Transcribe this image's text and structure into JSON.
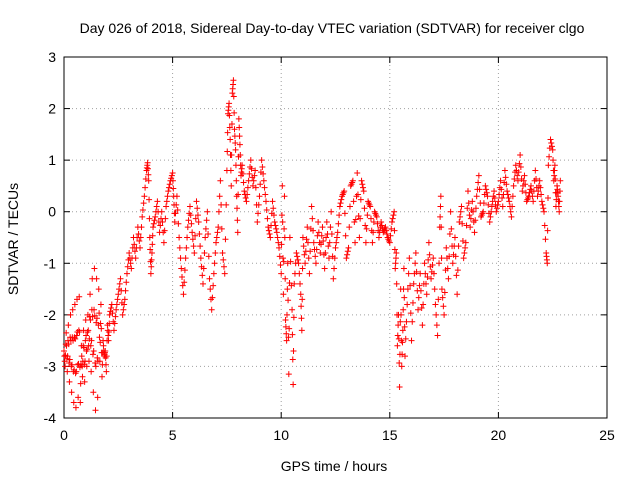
{
  "chart_data": {
    "type": "scatter",
    "title": "Day 026 of 2018, Sidereal Day-to-day VTEC variation (SDTVAR) for receiver clgo",
    "xlabel": "GPS time / hours",
    "ylabel": "SDTVAR / TECUs",
    "xlim": [
      0,
      25
    ],
    "ylim": [
      -4,
      3
    ],
    "xticks": [
      0,
      5,
      10,
      15,
      20,
      25
    ],
    "yticks": [
      -4,
      -3,
      -2,
      -1,
      0,
      1,
      2,
      3
    ],
    "grid": true,
    "marker": "+",
    "series": [
      {
        "name": "SDTVAR",
        "color": "#ff0000",
        "points": [
          [
            0.0,
            -2.7
          ],
          [
            0.05,
            -3.0
          ],
          [
            0.1,
            -2.35
          ],
          [
            0.15,
            -3.1
          ],
          [
            0.2,
            -2.2
          ],
          [
            0.25,
            -3.3
          ],
          [
            0.3,
            -2.0
          ],
          [
            0.35,
            -3.5
          ],
          [
            0.4,
            -1.9
          ],
          [
            0.45,
            -3.7
          ],
          [
            0.5,
            -1.8
          ],
          [
            0.55,
            -3.8
          ],
          [
            0.6,
            -1.7
          ],
          [
            0.65,
            -3.6
          ],
          [
            0.7,
            -1.65
          ],
          [
            0.75,
            -3.7
          ],
          [
            0.8,
            -2.6
          ],
          [
            0.85,
            -3.2
          ],
          [
            0.9,
            -2.3
          ],
          [
            0.95,
            -3.3
          ],
          [
            1.0,
            -2.1
          ],
          [
            1.05,
            -3.0
          ],
          [
            1.1,
            -2.0
          ],
          [
            1.15,
            -2.9
          ],
          [
            1.2,
            -1.6
          ],
          [
            1.25,
            -3.1
          ],
          [
            1.3,
            -1.3
          ],
          [
            1.35,
            -3.5
          ],
          [
            1.4,
            -1.1
          ],
          [
            1.45,
            -3.85
          ],
          [
            1.5,
            -1.3
          ],
          [
            1.55,
            -3.6
          ],
          [
            1.6,
            -1.5
          ],
          [
            1.65,
            -2.9
          ],
          [
            1.7,
            -1.8
          ],
          [
            1.75,
            -3.2
          ],
          [
            1.8,
            -2.5
          ],
          [
            1.85,
            -2.8
          ],
          [
            1.9,
            -2.7
          ],
          [
            1.95,
            -3.1
          ],
          [
            2.0,
            -2.2
          ],
          [
            2.05,
            -2.5
          ],
          [
            2.1,
            -2.0
          ],
          [
            2.2,
            -1.8
          ],
          [
            2.3,
            -2.3
          ],
          [
            2.4,
            -1.9
          ],
          [
            2.5,
            -1.6
          ],
          [
            2.6,
            -1.3
          ],
          [
            2.7,
            -2.0
          ],
          [
            2.8,
            -1.7
          ],
          [
            2.9,
            -1.2
          ],
          [
            3.0,
            -0.8
          ],
          [
            3.1,
            -1.1
          ],
          [
            3.2,
            -0.5
          ],
          [
            3.3,
            -0.9
          ],
          [
            3.4,
            -0.3
          ],
          [
            3.5,
            -0.7
          ],
          [
            3.6,
            -0.1
          ],
          [
            3.7,
            0.3
          ],
          [
            3.8,
            0.8
          ],
          [
            3.85,
            0.95
          ],
          [
            3.9,
            0.6
          ],
          [
            3.95,
            -0.5
          ],
          [
            4.0,
            -1.2
          ],
          [
            4.05,
            -0.8
          ],
          [
            4.1,
            -0.3
          ],
          [
            4.2,
            -0.1
          ],
          [
            4.3,
            0.2
          ],
          [
            4.4,
            -0.4
          ],
          [
            4.5,
            0.0
          ],
          [
            4.6,
            -0.6
          ],
          [
            4.7,
            0.1
          ],
          [
            4.8,
            0.4
          ],
          [
            4.9,
            0.6
          ],
          [
            5.0,
            0.75
          ],
          [
            5.05,
            0.3
          ],
          [
            5.1,
            -0.2
          ],
          [
            5.2,
            0.3
          ],
          [
            5.3,
            -0.5
          ],
          [
            5.4,
            -1.1
          ],
          [
            5.5,
            -1.6
          ],
          [
            5.6,
            -0.9
          ],
          [
            5.7,
            -0.3
          ],
          [
            5.8,
            0.1
          ],
          [
            5.9,
            -0.4
          ],
          [
            6.0,
            -0.8
          ],
          [
            6.1,
            0.2
          ],
          [
            6.2,
            -0.2
          ],
          [
            6.3,
            -0.9
          ],
          [
            6.4,
            -1.4
          ],
          [
            6.5,
            -0.5
          ],
          [
            6.6,
            0.0
          ],
          [
            6.7,
            -1.3
          ],
          [
            6.8,
            -1.9
          ],
          [
            6.9,
            -1.2
          ],
          [
            7.0,
            -0.6
          ],
          [
            7.1,
            -0.3
          ],
          [
            7.2,
            0.6
          ],
          [
            7.3,
            -0.8
          ],
          [
            7.4,
            -1.2
          ],
          [
            7.5,
            0.8
          ],
          [
            7.55,
            1.9
          ],
          [
            7.6,
            2.1
          ],
          [
            7.65,
            1.4
          ],
          [
            7.7,
            0.5
          ],
          [
            7.75,
            2.3
          ],
          [
            7.8,
            2.55
          ],
          [
            7.85,
            1.6
          ],
          [
            7.9,
            1.2
          ],
          [
            7.95,
            0.3
          ],
          [
            8.0,
            -0.4
          ],
          [
            8.05,
            1.8
          ],
          [
            8.1,
            1.3
          ],
          [
            8.15,
            0.7
          ],
          [
            8.2,
            0.9
          ],
          [
            8.3,
            0.4
          ],
          [
            8.4,
            0.2
          ],
          [
            8.5,
            0.6
          ],
          [
            8.6,
            1.0
          ],
          [
            8.7,
            0.5
          ],
          [
            8.8,
            0.8
          ],
          [
            8.9,
            -0.2
          ],
          [
            9.0,
            0.3
          ],
          [
            9.1,
            1.0
          ],
          [
            9.2,
            0.6
          ],
          [
            9.3,
            0.2
          ],
          [
            9.4,
            -0.3
          ],
          [
            9.5,
            -0.5
          ],
          [
            9.6,
            0.2
          ],
          [
            9.7,
            -0.2
          ],
          [
            9.8,
            -0.4
          ],
          [
            9.9,
            -0.7
          ],
          [
            10.0,
            -1.2
          ],
          [
            10.05,
            0.5
          ],
          [
            10.1,
            -1.6
          ],
          [
            10.15,
            0.3
          ],
          [
            10.2,
            -2.1
          ],
          [
            10.25,
            -2.5
          ],
          [
            10.3,
            -1.0
          ],
          [
            10.35,
            -3.15
          ],
          [
            10.4,
            -0.5
          ],
          [
            10.5,
            -1.9
          ],
          [
            10.55,
            -3.35
          ],
          [
            10.6,
            -1.4
          ],
          [
            10.7,
            -0.8
          ],
          [
            10.8,
            -1.0
          ],
          [
            10.9,
            -1.6
          ],
          [
            10.95,
            -2.3
          ],
          [
            11.0,
            -0.5
          ],
          [
            11.1,
            -1.0
          ],
          [
            11.2,
            -0.3
          ],
          [
            11.3,
            -1.2
          ],
          [
            11.4,
            0.1
          ],
          [
            11.5,
            -0.6
          ],
          [
            11.6,
            -1.0
          ],
          [
            11.7,
            -0.2
          ],
          [
            11.8,
            -0.8
          ],
          [
            11.9,
            -0.3
          ],
          [
            12.0,
            -1.1
          ],
          [
            12.1,
            -0.2
          ],
          [
            12.2,
            -0.9
          ],
          [
            12.3,
            0.0
          ],
          [
            12.4,
            -1.3
          ],
          [
            12.5,
            -0.7
          ],
          [
            12.6,
            -0.4
          ],
          [
            12.7,
            0.1
          ],
          [
            12.8,
            0.3
          ],
          [
            12.9,
            0.4
          ],
          [
            13.0,
            -0.9
          ],
          [
            13.1,
            -0.7
          ],
          [
            13.2,
            0.5
          ],
          [
            13.3,
            0.6
          ],
          [
            13.4,
            -0.6
          ],
          [
            13.5,
            0.75
          ],
          [
            13.6,
            -0.5
          ],
          [
            13.7,
            0.6
          ],
          [
            13.8,
            0.4
          ],
          [
            13.9,
            -0.6
          ],
          [
            14.0,
            0.2
          ],
          [
            14.1,
            0.1
          ],
          [
            14.2,
            -0.6
          ],
          [
            14.3,
            0.0
          ],
          [
            14.4,
            -0.1
          ],
          [
            14.5,
            -0.5
          ],
          [
            14.6,
            -0.2
          ],
          [
            14.7,
            -0.4
          ],
          [
            14.8,
            -0.3
          ],
          [
            14.9,
            -0.5
          ],
          [
            15.0,
            -0.6
          ],
          [
            15.1,
            -0.2
          ],
          [
            15.2,
            0.0
          ],
          [
            15.25,
            -1.1
          ],
          [
            15.3,
            -0.8
          ],
          [
            15.35,
            -2.6
          ],
          [
            15.4,
            -2.0
          ],
          [
            15.45,
            -3.4
          ],
          [
            15.5,
            -1.5
          ],
          [
            15.55,
            -3.0
          ],
          [
            15.6,
            -2.3
          ],
          [
            15.65,
            -1.1
          ],
          [
            15.7,
            -2.8
          ],
          [
            15.8,
            -1.8
          ],
          [
            15.9,
            -0.9
          ],
          [
            16.0,
            -2.5
          ],
          [
            16.1,
            -1.4
          ],
          [
            16.2,
            -0.8
          ],
          [
            16.3,
            -1.9
          ],
          [
            16.4,
            -1.2
          ],
          [
            16.5,
            -2.2
          ],
          [
            16.6,
            -1.0
          ],
          [
            16.7,
            -1.6
          ],
          [
            16.8,
            -0.6
          ],
          [
            16.9,
            -1.3
          ],
          [
            17.0,
            -0.9
          ],
          [
            17.1,
            -1.8
          ],
          [
            17.2,
            -2.4
          ],
          [
            17.3,
            -0.3
          ],
          [
            17.35,
            0.3
          ],
          [
            17.4,
            -1.5
          ],
          [
            17.5,
            -2.0
          ],
          [
            17.6,
            -0.7
          ],
          [
            17.7,
            -1.3
          ],
          [
            17.8,
            0.0
          ],
          [
            17.9,
            -1.0
          ],
          [
            18.0,
            -0.5
          ],
          [
            18.1,
            -1.6
          ],
          [
            18.2,
            -0.2
          ],
          [
            18.3,
            0.1
          ],
          [
            18.4,
            -0.9
          ],
          [
            18.5,
            -0.6
          ],
          [
            18.6,
            0.4
          ],
          [
            18.7,
            -0.3
          ],
          [
            18.8,
            0.2
          ],
          [
            18.9,
            -0.4
          ],
          [
            19.0,
            0.3
          ],
          [
            19.1,
            0.7
          ],
          [
            19.2,
            -0.1
          ],
          [
            19.3,
            0.0
          ],
          [
            19.4,
            0.5
          ],
          [
            19.5,
            0.3
          ],
          [
            19.6,
            -0.2
          ],
          [
            19.7,
            0.1
          ],
          [
            19.8,
            0.4
          ],
          [
            19.9,
            0.0
          ],
          [
            20.0,
            0.2
          ],
          [
            20.1,
            0.6
          ],
          [
            20.2,
            0.1
          ],
          [
            20.3,
            0.8
          ],
          [
            20.4,
            0.4
          ],
          [
            20.5,
            0.2
          ],
          [
            20.6,
            -0.1
          ],
          [
            20.7,
            0.5
          ],
          [
            20.8,
            0.9
          ],
          [
            20.9,
            0.6
          ],
          [
            21.0,
            1.1
          ],
          [
            21.1,
            0.4
          ],
          [
            21.2,
            0.7
          ],
          [
            21.3,
            0.2
          ],
          [
            21.4,
            0.3
          ],
          [
            21.5,
            0.5
          ],
          [
            21.6,
            0.2
          ],
          [
            21.7,
            0.8
          ],
          [
            21.8,
            0.3
          ],
          [
            21.9,
            0.6
          ],
          [
            22.0,
            0.2
          ],
          [
            22.1,
            0.0
          ],
          [
            22.2,
            -0.8
          ],
          [
            22.25,
            -1.0
          ],
          [
            22.3,
            0.9
          ],
          [
            22.4,
            1.4
          ],
          [
            22.5,
            1.2
          ],
          [
            22.55,
            0.6
          ],
          [
            22.6,
            0.9
          ],
          [
            22.65,
            0.1
          ],
          [
            22.7,
            0.5
          ],
          [
            22.75,
            0.3
          ],
          [
            22.8,
            0.0
          ],
          [
            22.85,
            0.6
          ]
        ]
      }
    ]
  }
}
